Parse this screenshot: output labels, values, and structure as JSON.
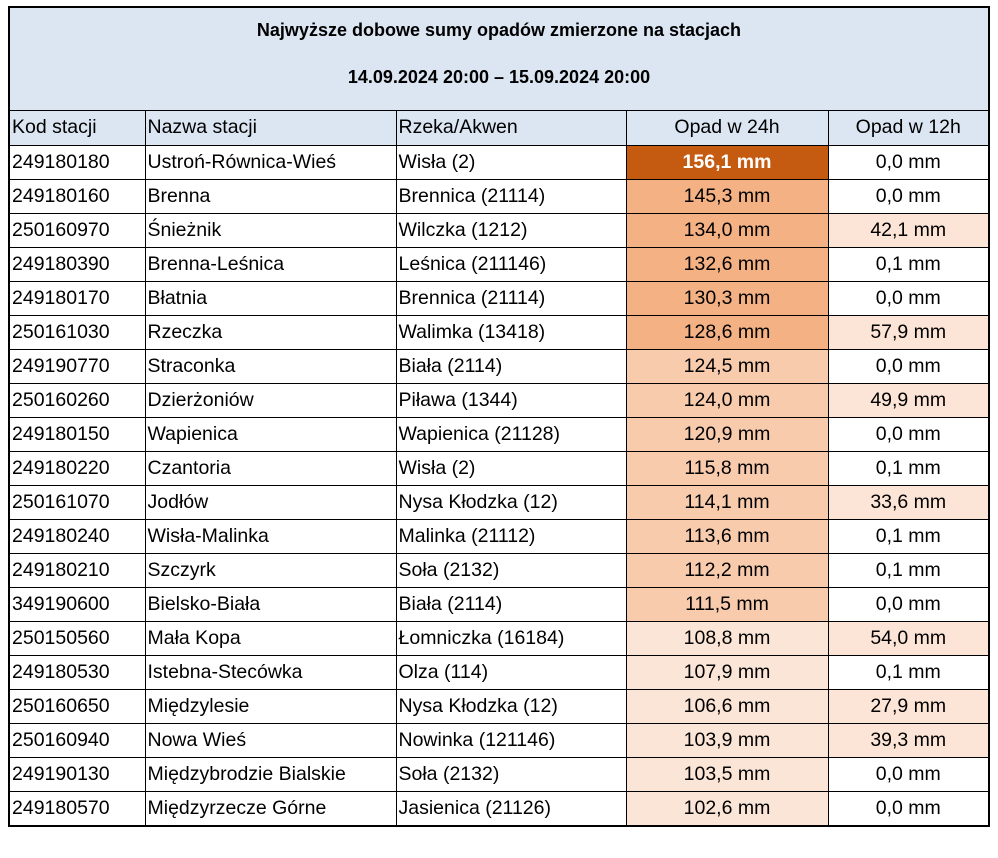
{
  "title": "Najwyższe dobowe sumy opadów zmierzone na stacjach",
  "period": "14.09.2024 20:00 – 15.09.2024 20:00",
  "headers": {
    "code": "Kod stacji",
    "name": "Nazwa stacji",
    "river": "Rzeka/Akwen",
    "p24": "Opad w 24h",
    "p12": "Opad w 12h"
  },
  "colors": {
    "header_bg": "#dce6f2",
    "max_24h": "#c55a11",
    "high_24h": "#f4b183",
    "mid_24h": "#f8cbad",
    "low_24h": "#fbe5d6",
    "p12_nonzero": "#fce4d6"
  },
  "rows": [
    {
      "code": "249180180",
      "name": "Ustroń-Równica-Wieś",
      "river": "Wisła (2)",
      "p24": "156,1 mm",
      "p12": "0,0 mm",
      "p24_bg": "#c55a11",
      "p12_bg": "#ffffff"
    },
    {
      "code": "249180160",
      "name": "Brenna",
      "river": "Brennica (21114)",
      "p24": "145,3 mm",
      "p12": "0,0 mm",
      "p24_bg": "#f4b183",
      "p12_bg": "#ffffff"
    },
    {
      "code": "250160970",
      "name": "Śnieżnik",
      "river": "Wilczka (1212)",
      "p24": "134,0 mm",
      "p12": "42,1 mm",
      "p24_bg": "#f4b183",
      "p12_bg": "#fce4d6"
    },
    {
      "code": "249180390",
      "name": "Brenna-Leśnica",
      "river": "Leśnica (211146)",
      "p24": "132,6 mm",
      "p12": "0,1 mm",
      "p24_bg": "#f4b183",
      "p12_bg": "#ffffff"
    },
    {
      "code": "249180170",
      "name": "Błatnia",
      "river": "Brennica (21114)",
      "p24": "130,3 mm",
      "p12": "0,0 mm",
      "p24_bg": "#f4b183",
      "p12_bg": "#ffffff"
    },
    {
      "code": "250161030",
      "name": "Rzeczka",
      "river": "Walimka (13418)",
      "p24": "128,6 mm",
      "p12": "57,9 mm",
      "p24_bg": "#f4b183",
      "p12_bg": "#fce4d6"
    },
    {
      "code": "249190770",
      "name": "Straconka",
      "river": "Biała (2114)",
      "p24": "124,5 mm",
      "p12": "0,0 mm",
      "p24_bg": "#f8cbad",
      "p12_bg": "#ffffff"
    },
    {
      "code": "250160260",
      "name": "Dzierżoniów",
      "river": "Piława (1344)",
      "p24": "124,0 mm",
      "p12": "49,9 mm",
      "p24_bg": "#f8cbad",
      "p12_bg": "#fce4d6"
    },
    {
      "code": "249180150",
      "name": "Wapienica",
      "river": "Wapienica (21128)",
      "p24": "120,9 mm",
      "p12": "0,0 mm",
      "p24_bg": "#f8cbad",
      "p12_bg": "#ffffff"
    },
    {
      "code": "249180220",
      "name": "Czantoria",
      "river": "Wisła (2)",
      "p24": "115,8 mm",
      "p12": "0,1 mm",
      "p24_bg": "#f8cbad",
      "p12_bg": "#ffffff"
    },
    {
      "code": "250161070",
      "name": "Jodłów",
      "river": "Nysa Kłodzka (12)",
      "p24": "114,1 mm",
      "p12": "33,6 mm",
      "p24_bg": "#f8cbad",
      "p12_bg": "#fce4d6"
    },
    {
      "code": "249180240",
      "name": "Wisła-Malinka",
      "river": "Malinka (21112)",
      "p24": "113,6 mm",
      "p12": "0,1 mm",
      "p24_bg": "#f8cbad",
      "p12_bg": "#ffffff"
    },
    {
      "code": "249180210",
      "name": "Szczyrk",
      "river": "Soła (2132)",
      "p24": "112,2 mm",
      "p12": "0,1 mm",
      "p24_bg": "#f8cbad",
      "p12_bg": "#ffffff"
    },
    {
      "code": "349190600",
      "name": "Bielsko-Biała",
      "river": "Biała (2114)",
      "p24": "111,5 mm",
      "p12": "0,0 mm",
      "p24_bg": "#f8cbad",
      "p12_bg": "#ffffff"
    },
    {
      "code": "250150560",
      "name": "Mała Kopa",
      "river": "Łomniczka (16184)",
      "p24": "108,8 mm",
      "p12": "54,0 mm",
      "p24_bg": "#fbe5d6",
      "p12_bg": "#fce4d6"
    },
    {
      "code": "249180530",
      "name": "Istebna-Stecówka",
      "river": "Olza (114)",
      "p24": "107,9 mm",
      "p12": "0,1 mm",
      "p24_bg": "#fbe5d6",
      "p12_bg": "#ffffff"
    },
    {
      "code": "250160650",
      "name": "Międzylesie",
      "river": "Nysa Kłodzka (12)",
      "p24": "106,6 mm",
      "p12": "27,9 mm",
      "p24_bg": "#fbe5d6",
      "p12_bg": "#fce4d6"
    },
    {
      "code": "250160940",
      "name": "Nowa Wieś",
      "river": "Nowinka (121146)",
      "p24": "103,9 mm",
      "p12": "39,3 mm",
      "p24_bg": "#fbe5d6",
      "p12_bg": "#fce4d6"
    },
    {
      "code": "249190130",
      "name": "Międzybrodzie Bialskie",
      "river": "Soła (2132)",
      "p24": "103,5 mm",
      "p12": "0,0 mm",
      "p24_bg": "#fbe5d6",
      "p12_bg": "#ffffff"
    },
    {
      "code": "249180570",
      "name": "Międzyrzecze Górne",
      "river": "Jasienica (21126)",
      "p24": "102,6 mm",
      "p12": "0,0 mm",
      "p24_bg": "#fbe5d6",
      "p12_bg": "#ffffff"
    }
  ]
}
